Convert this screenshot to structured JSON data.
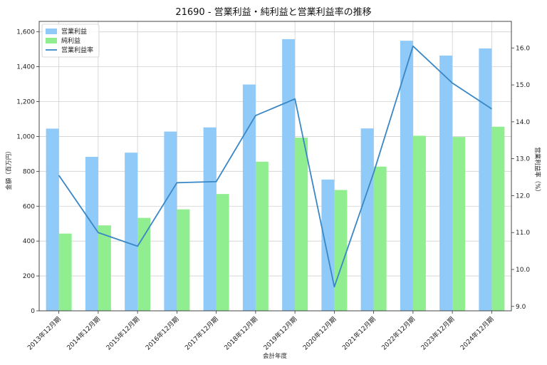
{
  "chart_data": {
    "type": "bar",
    "title": "21690 - 営業利益・純利益と営業利益率の推移",
    "xlabel": "会計年度",
    "ylabel": "金額（百万円）",
    "y2label": "営業利益率（%）",
    "categories": [
      "2013年12月期",
      "2014年12月期",
      "2015年12月期",
      "2016年12月期",
      "2017年12月期",
      "2018年12月期",
      "2019年12月期",
      "2020年12月期",
      "2021年12月期",
      "2022年12月期",
      "2023年12月期",
      "2024年12月期"
    ],
    "series": [
      {
        "name": "営業利益",
        "kind": "bar",
        "axis": "left",
        "color": "#90caf9",
        "values": [
          1045,
          883,
          907,
          1028,
          1052,
          1298,
          1558,
          753,
          1046,
          1549,
          1464,
          1505
        ]
      },
      {
        "name": "純利益",
        "kind": "bar",
        "axis": "left",
        "color": "#90ee90",
        "values": [
          443,
          490,
          533,
          582,
          670,
          855,
          993,
          693,
          827,
          1004,
          997,
          1056
        ]
      },
      {
        "name": "営業利益率",
        "kind": "line",
        "axis": "right",
        "color": "#3a87c5",
        "values": [
          12.55,
          11.0,
          10.63,
          12.35,
          12.38,
          14.17,
          14.62,
          9.53,
          12.62,
          16.05,
          15.05,
          14.35
        ]
      }
    ],
    "ylim": [
      0,
      1660
    ],
    "yticks": [
      0,
      200,
      400,
      600,
      800,
      1000,
      1200,
      1400,
      1600
    ],
    "ytick_labels": [
      "0",
      "200",
      "400",
      "600",
      "800",
      "1,000",
      "1,200",
      "1,400",
      "1,600"
    ],
    "y2lim": [
      8.88,
      16.72
    ],
    "y2ticks": [
      9.0,
      10.0,
      11.0,
      12.0,
      13.0,
      14.0,
      15.0,
      16.0
    ],
    "y2tick_labels": [
      "9.0",
      "10.0",
      "11.0",
      "12.0",
      "13.0",
      "14.0",
      "15.0",
      "16.0"
    ],
    "grid": true,
    "legend": "top-left"
  }
}
